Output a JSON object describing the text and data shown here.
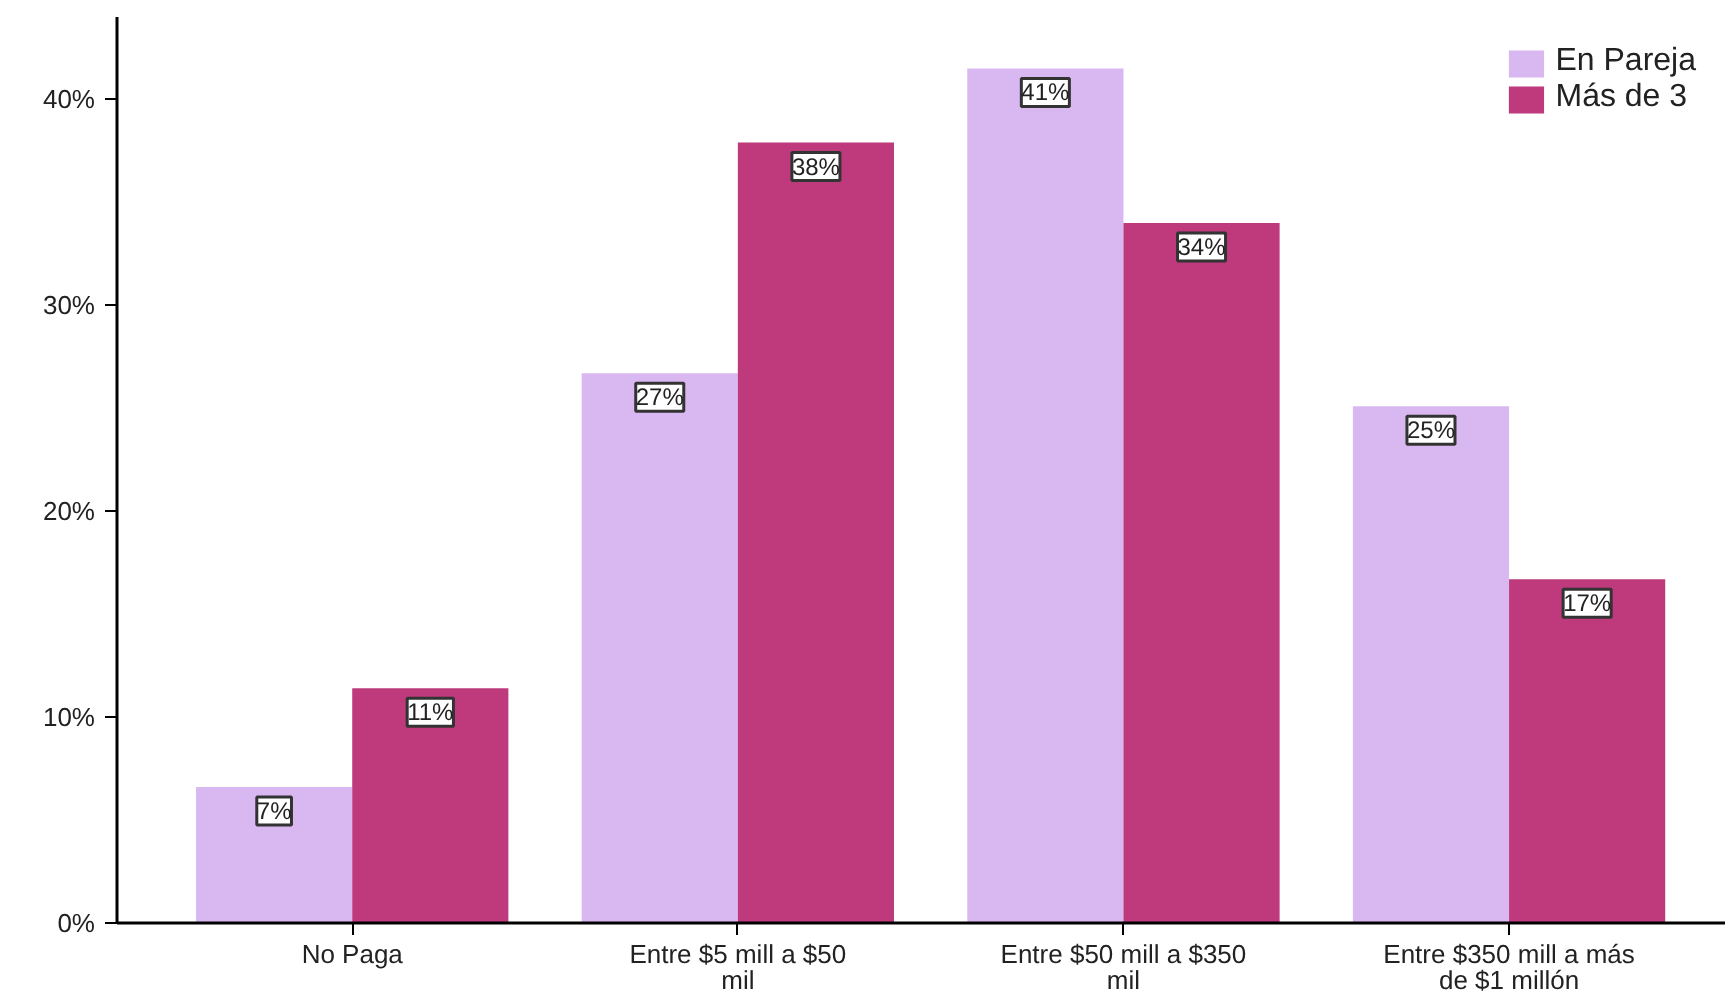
{
  "chart_data": {
    "type": "bar",
    "categories": [
      "No Paga",
      "Entre $5 mill a $50 mil",
      "Entre $50 mill a $350 mil",
      "Entre $350 mill a más de $1 millón"
    ],
    "series": [
      {
        "name": "En Pareja",
        "color": "#d9b8f2",
        "values": [
          6.6,
          26.7,
          41.5,
          25.1
        ],
        "value_labels": [
          "7%",
          "27%",
          "41%",
          "25%"
        ]
      },
      {
        "name": "Más de 3",
        "color": "#be3a7d",
        "values": [
          11.4,
          37.9,
          34.0,
          16.7
        ],
        "value_labels": [
          "11%",
          "38%",
          "34%",
          "17%"
        ]
      }
    ],
    "ylim": [
      0,
      44
    ],
    "yticks": [
      {
        "value": 0,
        "label": "0%"
      },
      {
        "value": 10,
        "label": "10%"
      },
      {
        "value": 20,
        "label": "20%"
      },
      {
        "value": 30,
        "label": "30%"
      },
      {
        "value": 40,
        "label": "40%"
      }
    ],
    "grid": false,
    "legend": "top right"
  }
}
